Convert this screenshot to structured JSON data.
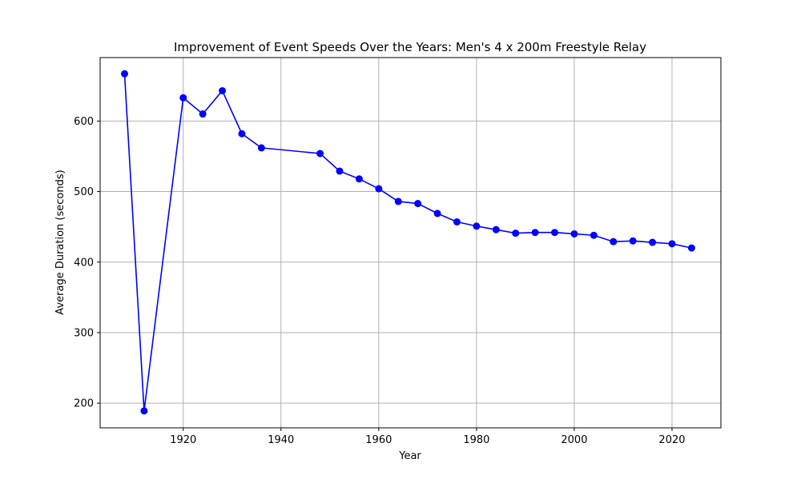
{
  "chart_data": {
    "type": "line",
    "title": "Improvement of Event Speeds Over the Years: Men's 4 x 200m Freestyle Relay",
    "xlabel": "Year",
    "ylabel": "Average Duration (seconds)",
    "xlim": [
      1903,
      2030
    ],
    "ylim": [
      165,
      690
    ],
    "xticks": [
      1920,
      1940,
      1960,
      1980,
      2000,
      2020
    ],
    "yticks": [
      200,
      300,
      400,
      500,
      600
    ],
    "grid": true,
    "series": [
      {
        "color": "#0000ff",
        "marker": "circle",
        "x": [
          1908,
          1912,
          1920,
          1924,
          1928,
          1932,
          1936,
          1948,
          1952,
          1956,
          1960,
          1964,
          1968,
          1972,
          1976,
          1980,
          1984,
          1988,
          1992,
          1996,
          2000,
          2004,
          2008,
          2012,
          2016,
          2020,
          2024
        ],
        "y": [
          667,
          189,
          633,
          610,
          643,
          582,
          562,
          554,
          529,
          518,
          504,
          486,
          483,
          469,
          457,
          451,
          446,
          441,
          442,
          442,
          440,
          438,
          429,
          430,
          428,
          426,
          420
        ]
      }
    ]
  }
}
